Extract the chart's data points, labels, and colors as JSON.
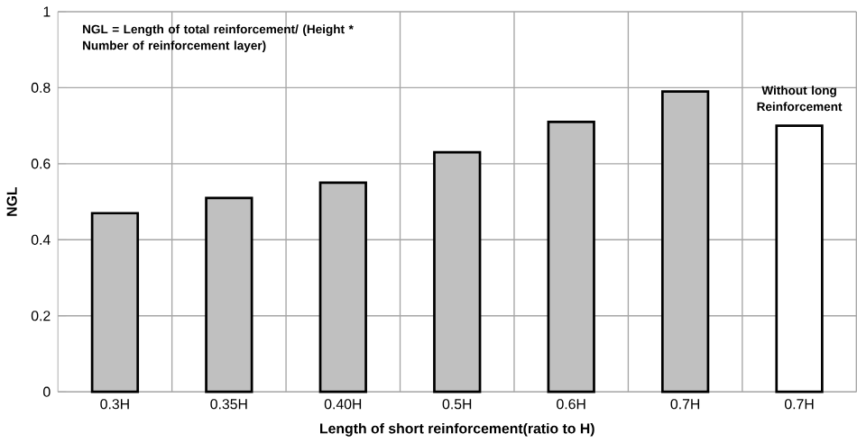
{
  "chart_data": {
    "type": "bar",
    "categories": [
      "0.3H",
      "0.35H",
      "0.40H",
      "0.5H",
      "0.6H",
      "0.7H",
      "0.7H"
    ],
    "values": [
      0.47,
      0.51,
      0.55,
      0.63,
      0.71,
      0.79,
      0.7
    ],
    "colors": [
      "#c0c0c0",
      "#c0c0c0",
      "#c0c0c0",
      "#c0c0c0",
      "#c0c0c0",
      "#c0c0c0",
      "#ffffff"
    ],
    "xlabel": "Length of short reinforcement(ratio to H)",
    "ylabel": "NGL",
    "ylim": [
      0,
      1
    ],
    "yticks": [
      0,
      0.2,
      0.4,
      0.6,
      0.8,
      1
    ],
    "grid": true,
    "annotations": [
      "NGL = Length of total reinforcement/ (Height * Number of reinforcement layer)",
      "Without long Reinforcement"
    ]
  }
}
